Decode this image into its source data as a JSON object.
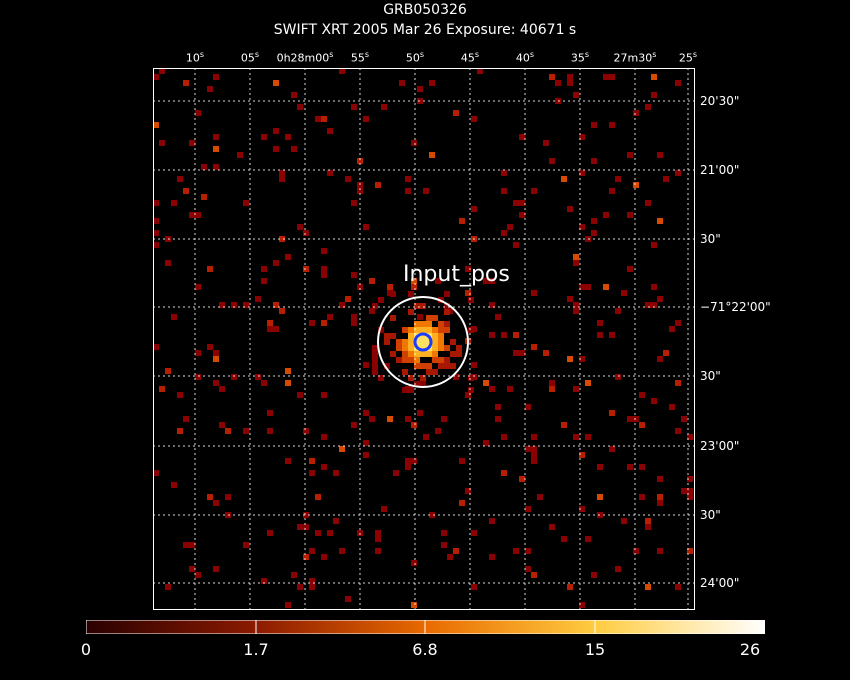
{
  "header": {
    "title": "GRB050326",
    "subtitle": "SWIFT XRT   2005 Mar 26    Exposure: 40671 s"
  },
  "ra_ticks": [
    {
      "label": "10",
      "unit": "s"
    },
    {
      "label": "05",
      "unit": "s"
    },
    {
      "label": "0h28m00",
      "unit": "s"
    },
    {
      "label": "55",
      "unit": "s"
    },
    {
      "label": "50",
      "unit": "s"
    },
    {
      "label": "45",
      "unit": "s"
    },
    {
      "label": "40",
      "unit": "s"
    },
    {
      "label": "35",
      "unit": "s"
    },
    {
      "label": "27m30",
      "unit": "s"
    },
    {
      "label": "25",
      "unit": "s"
    }
  ],
  "dec_ticks": [
    "20'30\"",
    "21'00\"",
    "30\"",
    "−71°22'00\"",
    "30\"",
    "23'00\"",
    "30\"",
    "24'00\""
  ],
  "source": {
    "label": "Input_pos"
  },
  "colorbar": {
    "labels": [
      "0",
      "1.7",
      "6.8",
      "15",
      "26"
    ],
    "values": [
      0,
      1.7,
      6.8,
      15,
      26
    ]
  },
  "colors": {
    "frame": "#ffffff",
    "grid": "#ffffff",
    "circle_outer": "#ffffff",
    "circle_inner": "#1a3cff",
    "pixel_low": "#8b0000",
    "pixel_mid": "#e05a00",
    "pixel_high": "#ffe060"
  }
}
